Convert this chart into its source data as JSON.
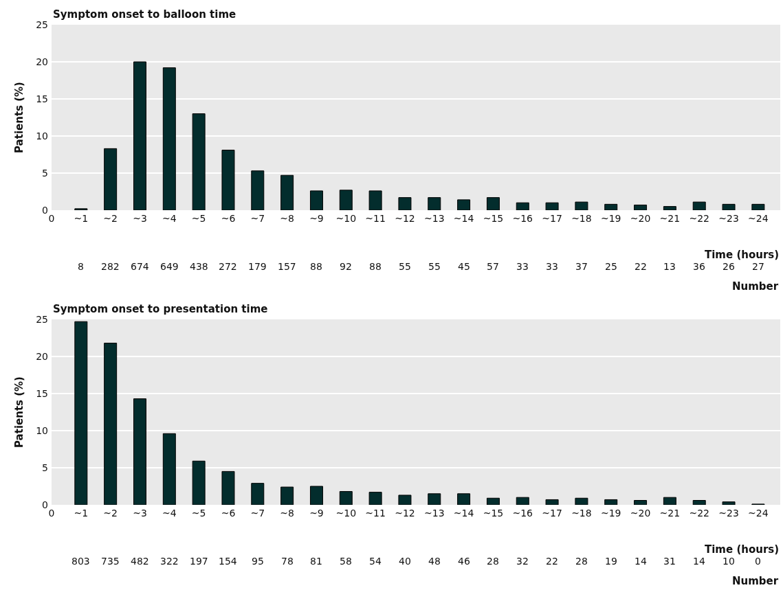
{
  "chart_data": [
    {
      "type": "bar",
      "title": "Symptom onset to balloon time",
      "ylabel": "Patients (%)",
      "xlabel": "Time (hours)",
      "x": [
        1,
        2,
        3,
        4,
        5,
        6,
        7,
        8,
        9,
        10,
        11,
        12,
        13,
        14,
        15,
        16,
        17,
        18,
        19,
        20,
        21,
        22,
        23,
        24
      ],
      "values": [
        0.2,
        8.3,
        20.0,
        19.2,
        13.0,
        8.1,
        5.3,
        4.7,
        2.6,
        2.7,
        2.6,
        1.7,
        1.7,
        1.4,
        1.7,
        1.0,
        1.0,
        1.1,
        0.8,
        0.7,
        0.5,
        1.1,
        0.8,
        0.8
      ],
      "color": "#032d2d",
      "xlim": [
        0,
        24.75
      ],
      "xticks": [
        0,
        {
          "value": 1,
          "label": "~1"
        },
        {
          "value": 2,
          "label": "~2"
        },
        {
          "value": 3,
          "label": "~3"
        },
        {
          "value": 4,
          "label": "~4"
        },
        {
          "value": 5,
          "label": "~5"
        },
        {
          "value": 6,
          "label": "~6"
        },
        {
          "value": 7,
          "label": "~7"
        },
        {
          "value": 8,
          "label": "~8"
        },
        {
          "value": 9,
          "label": "~9"
        },
        {
          "value": 10,
          "label": "~10"
        },
        {
          "value": 11,
          "label": "~11"
        },
        {
          "value": 12,
          "label": "~12"
        },
        {
          "value": 13,
          "label": "~13"
        },
        {
          "value": 14,
          "label": "~14"
        },
        {
          "value": 15,
          "label": "~15"
        },
        {
          "value": 16,
          "label": "~16"
        },
        {
          "value": 17,
          "label": "~17"
        },
        {
          "value": 18,
          "label": "~18"
        },
        {
          "value": 19,
          "label": "~19"
        },
        {
          "value": 20,
          "label": "~20"
        },
        {
          "value": 21,
          "label": "~21"
        },
        {
          "value": 22,
          "label": "~22"
        },
        {
          "value": 23,
          "label": "~23"
        },
        {
          "value": 24,
          "label": "~24"
        }
      ],
      "annotations": [
        "8",
        "282",
        "674",
        "649",
        "438",
        "272",
        "179",
        "157",
        "88",
        "92",
        "88",
        "55",
        "55",
        "45",
        "57",
        "33",
        "33",
        "37",
        "25",
        "22",
        "13",
        "36",
        "26",
        "27",
        "Number"
      ],
      "ylim": [
        0,
        25
      ],
      "yticks": [
        0,
        5,
        10,
        15,
        20,
        25
      ],
      "grid": "y"
    },
    {
      "type": "bar",
      "title": "Symptom onset to presentation time",
      "ylabel": "Patients (%)",
      "xlabel": "Time (hours)",
      "x": [
        1,
        2,
        3,
        4,
        5,
        6,
        7,
        8,
        9,
        10,
        11,
        12,
        13,
        14,
        15,
        16,
        17,
        18,
        19,
        20,
        21,
        22,
        23,
        24
      ],
      "values": [
        24.7,
        21.8,
        14.3,
        9.6,
        5.9,
        4.5,
        2.9,
        2.4,
        2.5,
        1.8,
        1.7,
        1.3,
        1.5,
        1.5,
        0.9,
        1.0,
        0.7,
        0.9,
        0.7,
        0.6,
        1.0,
        0.6,
        0.4,
        0.1
      ],
      "color": "#032d2d",
      "xlim": [
        0,
        24.75
      ],
      "xticks": [
        0,
        {
          "value": 1,
          "label": "~1"
        },
        {
          "value": 2,
          "label": "~2"
        },
        {
          "value": 3,
          "label": "~3"
        },
        {
          "value": 4,
          "label": "~4"
        },
        {
          "value": 5,
          "label": "~5"
        },
        {
          "value": 6,
          "label": "~6"
        },
        {
          "value": 7,
          "label": "~7"
        },
        {
          "value": 8,
          "label": "~8"
        },
        {
          "value": 9,
          "label": "~9"
        },
        {
          "value": 10,
          "label": "~10"
        },
        {
          "value": 11,
          "label": "~11"
        },
        {
          "value": 12,
          "label": "~12"
        },
        {
          "value": 13,
          "label": "~13"
        },
        {
          "value": 14,
          "label": "~14"
        },
        {
          "value": 15,
          "label": "~15"
        },
        {
          "value": 16,
          "label": "~16"
        },
        {
          "value": 17,
          "label": "~17"
        },
        {
          "value": 18,
          "label": "~18"
        },
        {
          "value": 19,
          "label": "~19"
        },
        {
          "value": 20,
          "label": "~20"
        },
        {
          "value": 21,
          "label": "~21"
        },
        {
          "value": 22,
          "label": "~22"
        },
        {
          "value": 23,
          "label": "~23"
        },
        {
          "value": 24,
          "label": "~24"
        }
      ],
      "annotations": [
        "803",
        "735",
        "482",
        "322",
        "197",
        "154",
        "95",
        "78",
        "81",
        "58",
        "54",
        "40",
        "48",
        "46",
        "28",
        "32",
        "22",
        "28",
        "19",
        "14",
        "31",
        "14",
        "10",
        "0",
        "Number"
      ],
      "ylim": [
        0,
        25
      ],
      "yticks": [
        0,
        5,
        10,
        15,
        20,
        25
      ],
      "grid": "y"
    }
  ]
}
